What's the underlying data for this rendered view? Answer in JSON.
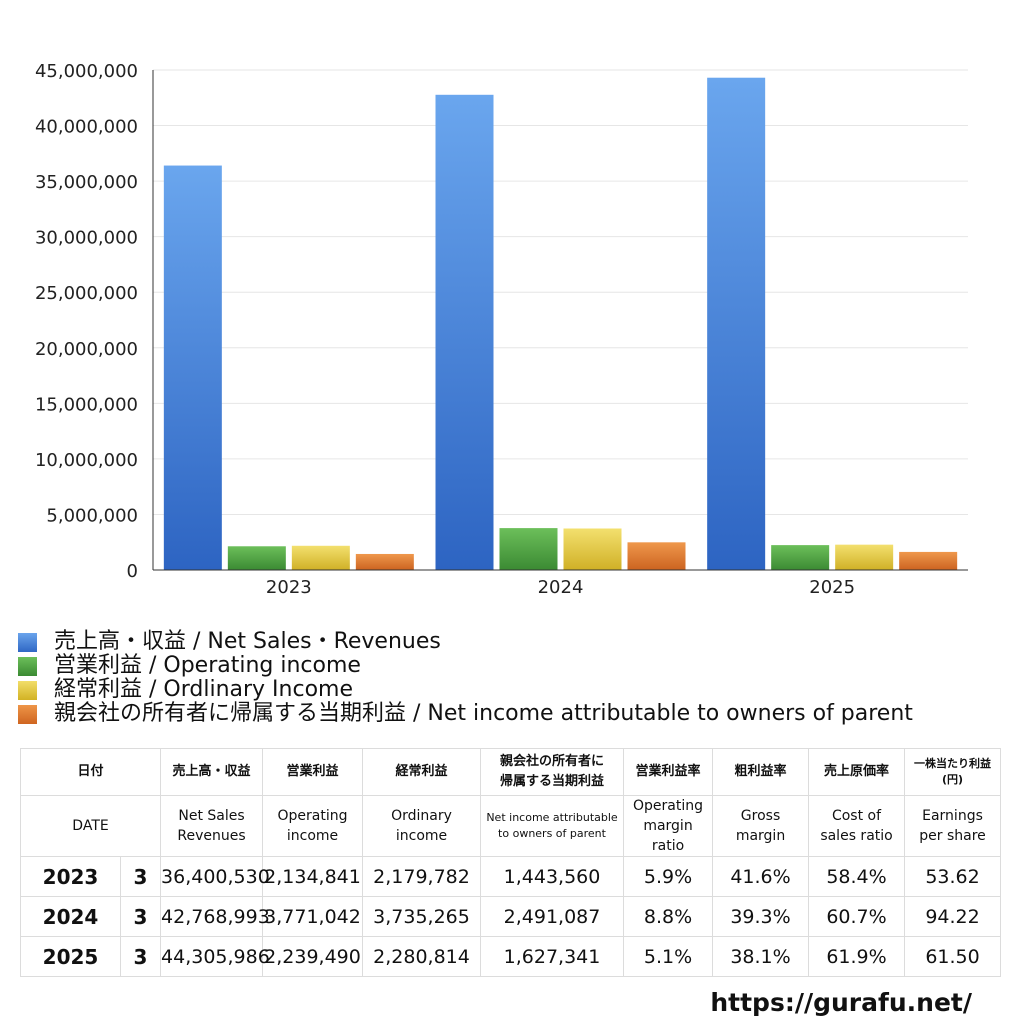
{
  "chart_data": {
    "type": "bar",
    "categories": [
      "2023",
      "2024",
      "2025"
    ],
    "ylim": [
      0,
      45000000
    ],
    "yticks": [
      "0",
      "5,000,000",
      "10,000,000",
      "15,000,000",
      "20,000,000",
      "25,000,000",
      "30,000,000",
      "35,000,000",
      "40,000,000",
      "45,000,000"
    ],
    "ytick_values": [
      0,
      5000000,
      10000000,
      15000000,
      20000000,
      25000000,
      30000000,
      35000000,
      40000000,
      45000000
    ],
    "grid": true,
    "legend_position": "bottom-left",
    "series": [
      {
        "name": "売上高・収益 / Net Sales・Revenues",
        "color": "#4a86dc",
        "values": [
          36400530,
          42768993,
          44305986
        ]
      },
      {
        "name": "営業利益 / Operating income",
        "color": "#4ca043",
        "values": [
          2134841,
          3771042,
          2239490
        ]
      },
      {
        "name": "経常利益 / Ordlinary Income",
        "color": "#e8cc3c",
        "values": [
          2179782,
          3735265,
          2280814
        ]
      },
      {
        "name": "親会社の所有者に帰属する当期利益 / Net income attributable to owners of parent",
        "color": "#e07a2c",
        "values": [
          1443560,
          2491087,
          1627341
        ]
      }
    ]
  },
  "table": {
    "header_jp": [
      "日付",
      "売上高・収益",
      "営業利益",
      "経常利益",
      "親会社の所有者に帰属する当期利益",
      "営業利益率",
      "粗利益率",
      "売上原価率",
      "一株当たり利益(円)"
    ],
    "header_jp_split": {
      "parent_line1": "親会社の所有者に",
      "parent_line2": "帰属する当期利益",
      "eps_line1": "一株当たり利益",
      "eps_line2": "(円)"
    },
    "header_en": {
      "date": "DATE",
      "sales_1": "Net Sales",
      "sales_2": "Revenues",
      "op_1": "Operating",
      "op_2": "income",
      "ord_1": "Ordinary",
      "ord_2": "income",
      "parent_1": "Net income attributable",
      "parent_2": "to owners of parent",
      "opm_1": "Operating",
      "opm_2": "margin",
      "opm_3": "ratio",
      "gm_1": "Gross",
      "gm_2": "margin",
      "cos_1": "Cost of",
      "cos_2": "sales ratio",
      "eps_1": "Earnings",
      "eps_2": "per share"
    },
    "rows": [
      {
        "year": "2023",
        "month": "3",
        "sales": "36,400,530",
        "op": "2,134,841",
        "ord": "2,179,782",
        "parent": "1,443,560",
        "opm": "5.9%",
        "gm": "41.6%",
        "cos": "58.4%",
        "eps": "53.62"
      },
      {
        "year": "2024",
        "month": "3",
        "sales": "42,768,993",
        "op": "3,771,042",
        "ord": "3,735,265",
        "parent": "2,491,087",
        "opm": "8.8%",
        "gm": "39.3%",
        "cos": "60.7%",
        "eps": "94.22"
      },
      {
        "year": "2025",
        "month": "3",
        "sales": "44,305,986",
        "op": "2,239,490",
        "ord": "2,280,814",
        "parent": "1,627,341",
        "opm": "5.1%",
        "gm": "38.1%",
        "cos": "61.9%",
        "eps": "61.50"
      }
    ]
  },
  "footer": {
    "site": "https://gurafu.net/"
  }
}
